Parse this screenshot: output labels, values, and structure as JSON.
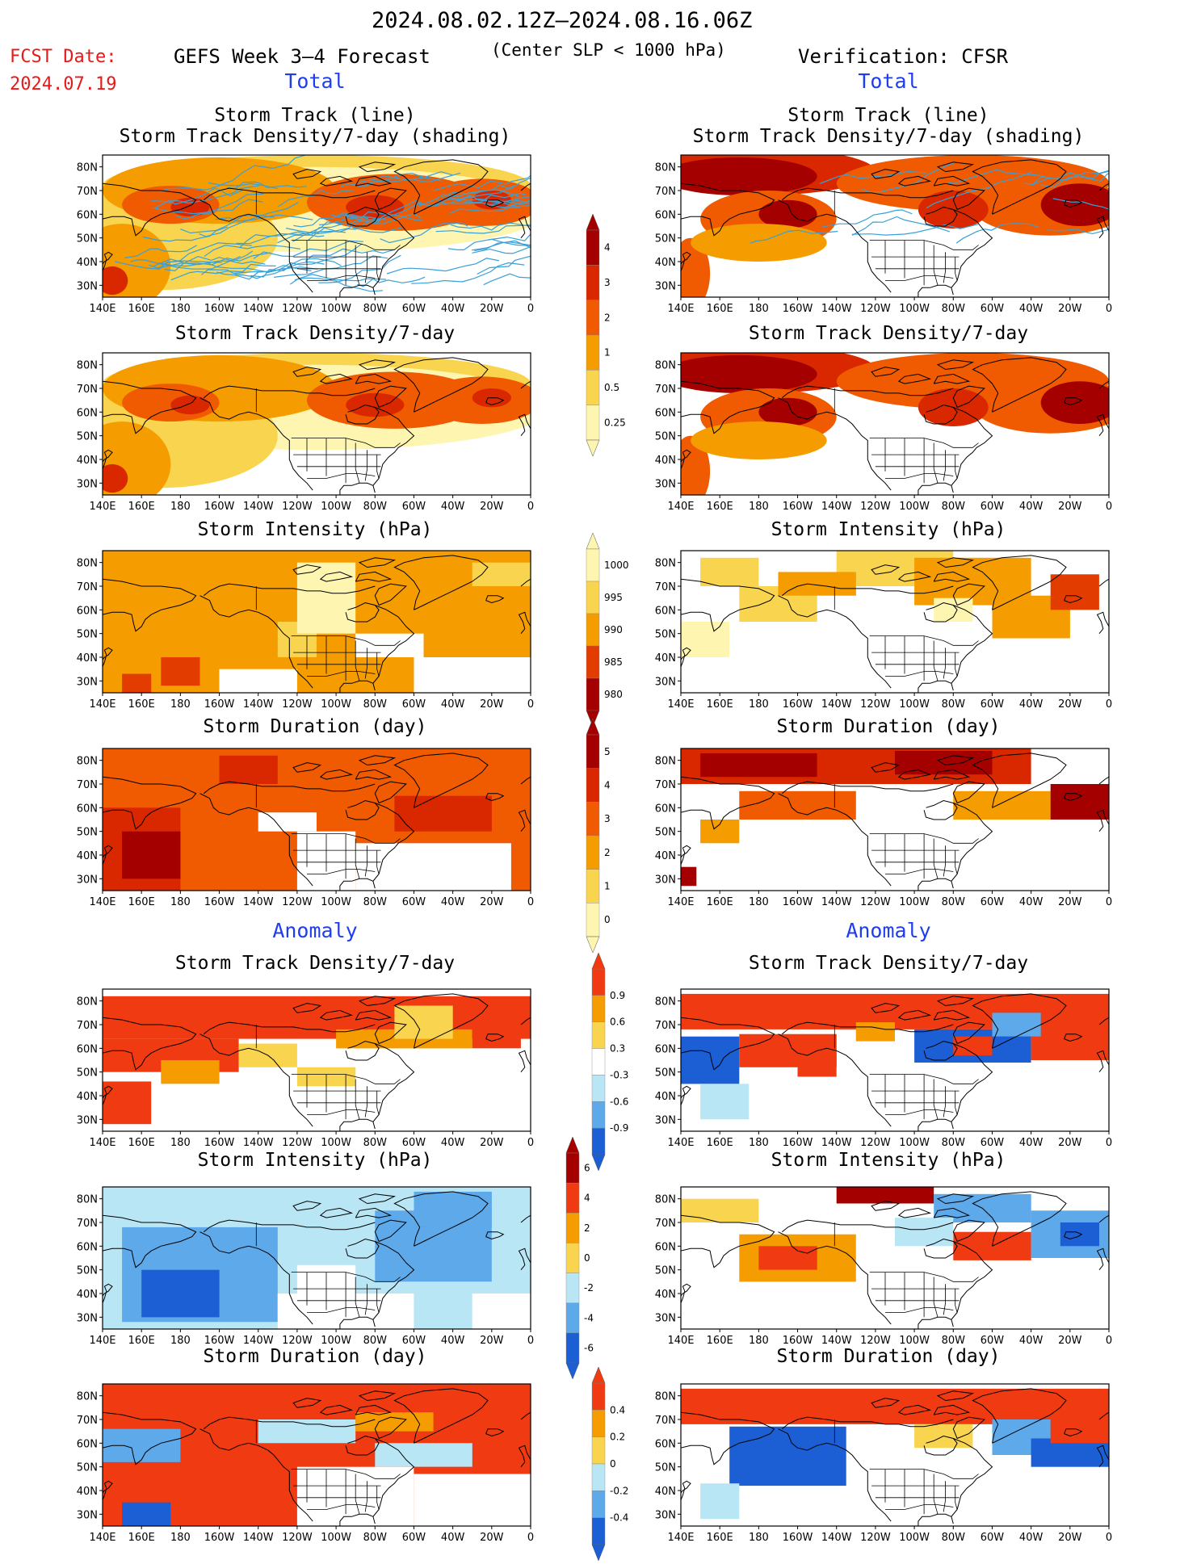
{
  "header": {
    "date_range": "2024.08.02.12Z–2024.08.16.06Z",
    "fcst_label": "FCST Date:",
    "fcst_date": "2024.07.19",
    "forecast_title": "GEFS Week 3–4 Forecast",
    "center_note": "(Center SLP < 1000 hPa)",
    "verification": "Verification: CFSR"
  },
  "sections": {
    "total": "Total",
    "anomaly": "Anomaly"
  },
  "panel_titles": {
    "track_line": "Storm Track (line)",
    "track_density_shading": "Storm Track Density/7-day (shading)",
    "track_density": "Storm Track Density/7-day",
    "intensity": "Storm Intensity (hPa)",
    "duration": "Storm Duration (day)"
  },
  "map_axes": {
    "lat_labels": [
      "80N",
      "70N",
      "60N",
      "50N",
      "40N",
      "30N"
    ],
    "lon_labels": [
      "140E",
      "160E",
      "180",
      "160W",
      "140W",
      "120W",
      "100W",
      "80W",
      "60W",
      "40W",
      "20W",
      "0"
    ]
  },
  "colorbars": {
    "density": {
      "labels": [
        "4",
        "3",
        "2",
        "1",
        "0.5",
        "0.25"
      ],
      "colors": [
        "#a50000",
        "#d92800",
        "#f05a00",
        "#f59c00",
        "#f9d44f",
        "#fdf5b0"
      ]
    },
    "intensity": {
      "labels": [
        "1000",
        "995",
        "990",
        "985",
        "980"
      ],
      "colors": [
        "#fdf5b0",
        "#f9d44f",
        "#f59c00",
        "#e23c00",
        "#a50000"
      ]
    },
    "duration": {
      "labels": [
        "5",
        "4",
        "3",
        "2",
        "1",
        "0"
      ],
      "colors": [
        "#a50000",
        "#d92800",
        "#f05a00",
        "#f59c00",
        "#f9d44f",
        "#fdf5b0"
      ]
    },
    "density_anom": {
      "labels": [
        "0.9",
        "0.6",
        "0.3",
        "-0.3",
        "-0.6",
        "-0.9"
      ],
      "colors": [
        "#f03b12",
        "#f59c00",
        "#f9d44f",
        "#ffffff",
        "#b9e6f5",
        "#5da9ea",
        "#1c5fd4"
      ]
    },
    "intensity_anom": {
      "labels": [
        "6",
        "4",
        "2",
        "0",
        "-2",
        "-4",
        "-6"
      ],
      "colors": [
        "#a50000",
        "#f03b12",
        "#f59c00",
        "#f9d44f",
        "#b9e6f5",
        "#5da9ea",
        "#1c5fd4"
      ]
    },
    "duration_anom": {
      "labels": [
        "0.4",
        "0.2",
        "0",
        "-0.2",
        "-0.4"
      ],
      "colors": [
        "#f03b12",
        "#f59c00",
        "#f9d44f",
        "#b9e6f5",
        "#5da9ea",
        "#1c5fd4"
      ]
    }
  },
  "line_color": "#3aa0d8"
}
